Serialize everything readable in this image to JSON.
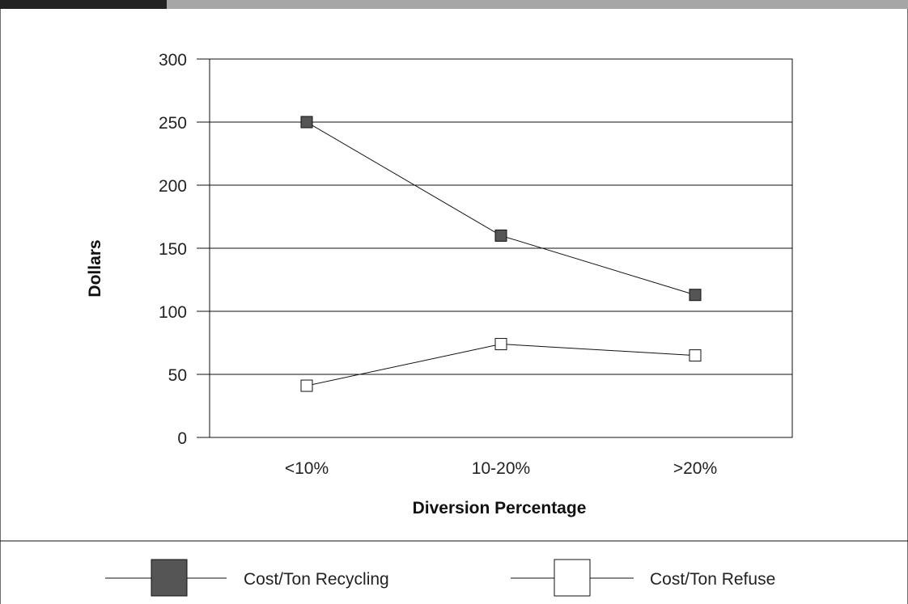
{
  "chart_data": {
    "type": "line",
    "categories": [
      "<10%",
      "10-20%",
      ">20%"
    ],
    "series": [
      {
        "name": "Cost/Ton Recycling",
        "values": [
          250,
          160,
          113
        ],
        "marker_fill": "#555555"
      },
      {
        "name": "Cost/Ton Refuse",
        "values": [
          41,
          74,
          65
        ],
        "marker_fill": "#ffffff"
      }
    ],
    "ylim": [
      0,
      300
    ],
    "yticks": [
      0,
      50,
      100,
      150,
      200,
      250,
      300
    ],
    "xlabel": "Diversion Percentage",
    "ylabel": "Dollars",
    "grid": true,
    "legend_position": "bottom"
  }
}
